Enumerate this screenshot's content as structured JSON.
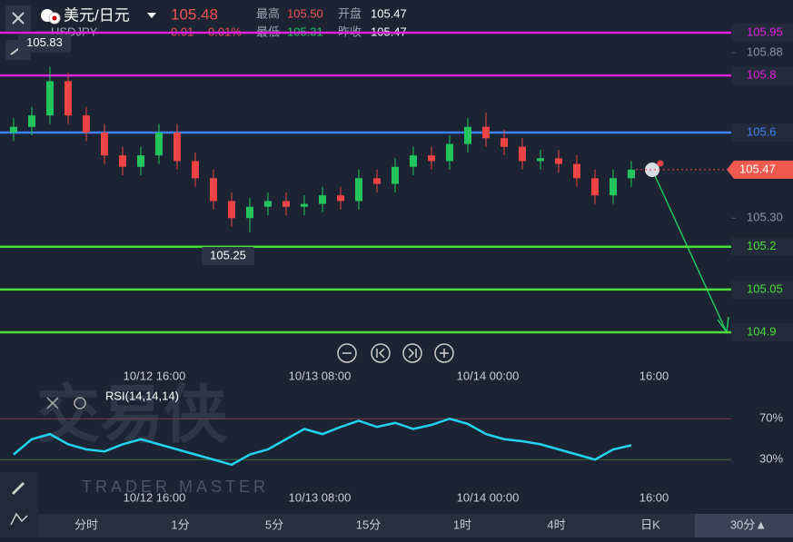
{
  "header": {
    "pair": "美元/日元",
    "price": "105.48",
    "high_label": "最高",
    "high": "105.50",
    "open_label": "开盘",
    "open": "105.47",
    "symbol": "USDJPY",
    "change": "0.01",
    "change_pct": "0.01%",
    "low_label": "最低",
    "low": "105.31",
    "prev_label": "昨收",
    "prev": "105.47"
  },
  "chart_data": [
    {
      "type": "candlestick",
      "ylim": [
        104.9,
        105.95
      ],
      "yticks": [
        105.88,
        {
          "value": 105.3,
          "label": "105.30"
        }
      ],
      "up_color": "#22c55e",
      "down_color": "#ef4444",
      "open": [
        105.6,
        105.62,
        105.66,
        105.78,
        105.66,
        105.6,
        105.52,
        105.48,
        105.52,
        105.6,
        105.5,
        105.44,
        105.36,
        105.3,
        105.34,
        105.36,
        105.34,
        105.35,
        105.38,
        105.36,
        105.44,
        105.42,
        105.48,
        105.52,
        105.5,
        105.56,
        105.62,
        105.58,
        105.55,
        105.5,
        105.51,
        105.49,
        105.44,
        105.38,
        105.44
      ],
      "high": [
        105.65,
        105.69,
        105.83,
        105.81,
        105.69,
        105.63,
        105.55,
        105.55,
        105.63,
        105.63,
        105.53,
        105.47,
        105.39,
        105.37,
        105.39,
        105.39,
        105.38,
        105.41,
        105.41,
        105.47,
        105.47,
        105.51,
        105.55,
        105.55,
        105.59,
        105.65,
        105.67,
        105.61,
        105.58,
        105.54,
        105.54,
        105.52,
        105.47,
        105.47,
        105.5
      ],
      "low": [
        105.57,
        105.59,
        105.63,
        105.63,
        105.57,
        105.49,
        105.45,
        105.45,
        105.49,
        105.47,
        105.41,
        105.33,
        105.27,
        105.25,
        105.31,
        105.31,
        105.31,
        105.32,
        105.33,
        105.33,
        105.39,
        105.39,
        105.45,
        105.47,
        105.47,
        105.53,
        105.55,
        105.52,
        105.47,
        105.47,
        105.46,
        105.41,
        105.35,
        105.35,
        105.41
      ],
      "close": [
        105.62,
        105.66,
        105.78,
        105.66,
        105.6,
        105.52,
        105.48,
        105.52,
        105.6,
        105.5,
        105.44,
        105.36,
        105.3,
        105.34,
        105.36,
        105.34,
        105.35,
        105.38,
        105.36,
        105.44,
        105.42,
        105.48,
        105.52,
        105.5,
        105.56,
        105.62,
        105.58,
        105.55,
        105.5,
        105.51,
        105.49,
        105.44,
        105.38,
        105.44,
        105.47
      ],
      "levels": [
        {
          "value": 105.95,
          "color": "#e020e0"
        },
        {
          "value": 105.8,
          "color": "#e020e0"
        },
        {
          "value": 105.6,
          "color": "#3b82f6"
        },
        {
          "value": 105.2,
          "color": "#4ade3a"
        },
        {
          "value": 105.05,
          "color": "#4ade3a"
        },
        {
          "value": 104.9,
          "color": "#4ade3a"
        }
      ],
      "current": {
        "value": 105.47,
        "label": "105.47"
      },
      "annotations": [
        {
          "value": 105.83,
          "label": "105.83"
        },
        {
          "value": 105.25,
          "label": "105.25"
        }
      ],
      "time_labels": [
        "10/12 16:00",
        "10/13 08:00",
        "10/14 00:00",
        "16:00"
      ]
    },
    {
      "type": "line",
      "name": "RSI(14,14,14)",
      "color": "#22d3ee",
      "ylim": [
        0,
        100
      ],
      "yticks": [
        {
          "value": 70,
          "label": "70%"
        },
        {
          "value": 30,
          "label": "30%"
        }
      ],
      "values": [
        35,
        50,
        55,
        45,
        40,
        38,
        45,
        50,
        45,
        40,
        35,
        30,
        25,
        35,
        40,
        50,
        60,
        55,
        62,
        68,
        62,
        66,
        60,
        64,
        70,
        65,
        55,
        50,
        48,
        45,
        40,
        35,
        30,
        40,
        44
      ]
    }
  ],
  "watermark": {
    "cn": "交易侠",
    "en": "TRADER MASTER"
  },
  "tabs": [
    "分时",
    "1分",
    "5分",
    "15分",
    "1时",
    "4时",
    "日K",
    "30分▲"
  ]
}
